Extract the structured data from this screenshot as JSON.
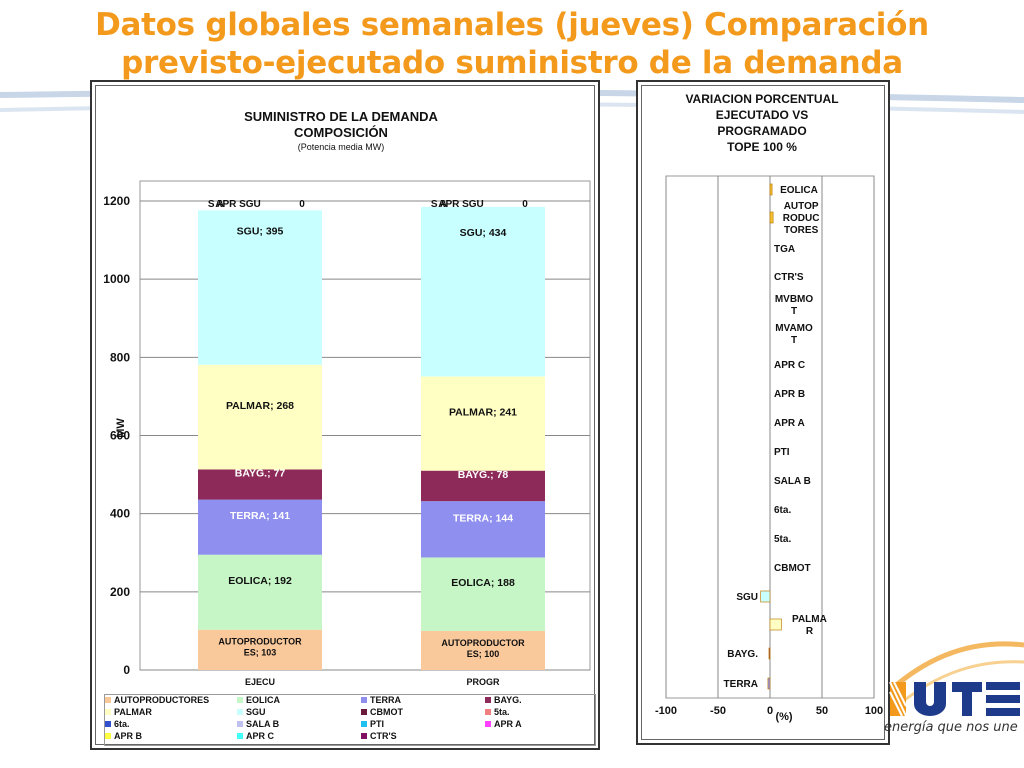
{
  "slide": {
    "title_line1": "Datos globales semanales  (jueves) Comparación",
    "title_line2": "previsto-ejecutado suministro de la demanda",
    "logo_text": "UTE",
    "tagline": "energía que nos une"
  },
  "colors": {
    "title": "#f39a1d",
    "autoproductores": "#f9c89b",
    "eolica": "#c6f5c6",
    "terra": "#8f8ff0",
    "bayg": "#8e2a5a",
    "palmar": "#ffffc4",
    "sgu": "#c8ffff",
    "cbmot": "#6a1a3a",
    "sta5": "#f08080",
    "ta6": "#3050d0",
    "salab": "#c0c0f0",
    "pti": "#20c0f0",
    "apra": "#ff40ff",
    "aprb": "#ffff40",
    "aprc": "#40ffff",
    "ctrs": "#801060"
  },
  "chart_data": [
    {
      "type": "bar",
      "stacked": true,
      "title": "SUMINISTRO DE LA DEMANDA",
      "subtitle": "COMPOSICIÓN",
      "subtitle2": "(Potencia media MW)",
      "ylabel": "MW",
      "ylim": [
        0,
        1200
      ],
      "yticks": [
        "0",
        "200",
        "400",
        "600",
        "800",
        "1000",
        "1200"
      ],
      "categories": [
        "EJECU",
        "PROGR"
      ],
      "grid": true,
      "series": [
        {
          "name": "AUTOPRODUCTORES",
          "values": [
            103,
            100
          ],
          "labels": [
            "AUTOPRODUCTOR ES; 103",
            "AUTOPRODUCTOR ES; 100"
          ],
          "label_lines": [
            [
              "AUTOPRODUCTOR",
              "ES; 103"
            ],
            [
              "AUTOPRODUCTOR",
              "ES; 100"
            ]
          ]
        },
        {
          "name": "EOLICA",
          "values": [
            192,
            188
          ],
          "labels": [
            "EOLICA; 192",
            "EOLICA; 188"
          ]
        },
        {
          "name": "TERRA",
          "values": [
            141,
            144
          ],
          "labels": [
            "TERRA; 141",
            "TERRA; 144"
          ]
        },
        {
          "name": "BAYG.",
          "values": [
            77,
            78
          ],
          "labels": [
            "BAYG.; 77",
            "BAYG.; 78"
          ]
        },
        {
          "name": "PALMAR",
          "values": [
            268,
            241
          ],
          "labels": [
            "PALMAR; 268",
            "PALMAR; 241"
          ]
        },
        {
          "name": "SGU",
          "values": [
            395,
            434
          ],
          "labels": [
            "SGU; 395",
            "SGU; 434"
          ]
        },
        {
          "name": "CBMOT",
          "values": [
            0,
            0
          ]
        },
        {
          "name": "5ta.",
          "values": [
            0,
            0
          ]
        },
        {
          "name": "6ta.",
          "values": [
            0,
            0
          ]
        },
        {
          "name": "SALA B",
          "values": [
            0,
            0
          ],
          "labels": [
            "S A",
            "S A"
          ]
        },
        {
          "name": "PTI",
          "values": [
            0,
            0
          ]
        },
        {
          "name": "APR A",
          "values": [
            0,
            0
          ],
          "labels": [
            "APR SGU",
            "APR SGU"
          ]
        },
        {
          "name": "APR B",
          "values": [
            0,
            0
          ]
        },
        {
          "name": "APR C",
          "values": [
            0,
            0
          ]
        },
        {
          "name": "CTR'S",
          "values": [
            0,
            0
          ],
          "labels": [
            "0",
            "0"
          ]
        }
      ],
      "legend": {
        "placement": "bottom",
        "rows": [
          [
            "AUTOPRODUCTORES",
            "EOLICA",
            "TERRA",
            "BAYG."
          ],
          [
            "PALMAR",
            "SGU",
            "CBMOT",
            "5ta."
          ],
          [
            "6ta.",
            "SALA B",
            "PTI",
            "APR A"
          ],
          [
            "APR B",
            "APR C",
            "CTR'S"
          ]
        ],
        "color_keys": [
          [
            "autoproductores",
            "eolica",
            "terra",
            "bayg"
          ],
          [
            "palmar",
            "sgu",
            "cbmot",
            "sta5"
          ],
          [
            "ta6",
            "salab",
            "pti",
            "apra"
          ],
          [
            "aprb",
            "aprc",
            "ctrs"
          ]
        ]
      }
    },
    {
      "type": "bar",
      "orientation": "horizontal",
      "title_lines": [
        "VARIACION  PORCENTUAL",
        "EJECUTADO VS",
        "PROGRAMADO",
        "TOPE 100 %"
      ],
      "xlabel": "(%)",
      "xlim": [
        -100,
        100
      ],
      "xticks": [
        "-100",
        "-50",
        "0",
        "50",
        "100"
      ],
      "grid": true,
      "categories": [
        "EOLICA",
        "AUTOPRODUCTORES",
        "TGA",
        "CTR'S",
        "MVBMOT",
        "MVAMOT",
        "APR C",
        "APR B",
        "APR A",
        "PTI",
        "SALA B",
        "6ta.",
        "5ta.",
        "CBMOT",
        "SGU",
        "PALMAR",
        "BAYG.",
        "TERRA"
      ],
      "category_label_lines": [
        [
          "EOLICA"
        ],
        [
          "AUTOP",
          "RODUC",
          "TORES"
        ],
        [
          "TGA"
        ],
        [
          "CTR'S"
        ],
        [
          "MVBMO",
          "T"
        ],
        [
          "MVAMO",
          "T"
        ],
        [
          "APR C"
        ],
        [
          "APR B"
        ],
        [
          "APR A"
        ],
        [
          "PTI"
        ],
        [
          "SALA B"
        ],
        [
          "6ta."
        ],
        [
          "5ta."
        ],
        [
          "CBMOT"
        ],
        [
          "SGU"
        ],
        [
          "PALMA",
          "R"
        ],
        [
          "BAYG."
        ],
        [
          "TERRA"
        ]
      ],
      "values": [
        2,
        3,
        0,
        0,
        0,
        0,
        0,
        0,
        0,
        0,
        0,
        0,
        0,
        0,
        -9,
        11,
        -1,
        -2
      ],
      "bar_colors": [
        "#f3c030",
        "#f3c030",
        "#ffffff",
        "#ffffff",
        "#ffffff",
        "#ffffff",
        "#ffffff",
        "#ffffff",
        "#ffffff",
        "#ffffff",
        "#ffffff",
        "#ffffff",
        "#ffffff",
        "#ffffff",
        "#c8ffff",
        "#ffffc4",
        "#8e2a5a",
        "#8f8ff0"
      ]
    }
  ]
}
